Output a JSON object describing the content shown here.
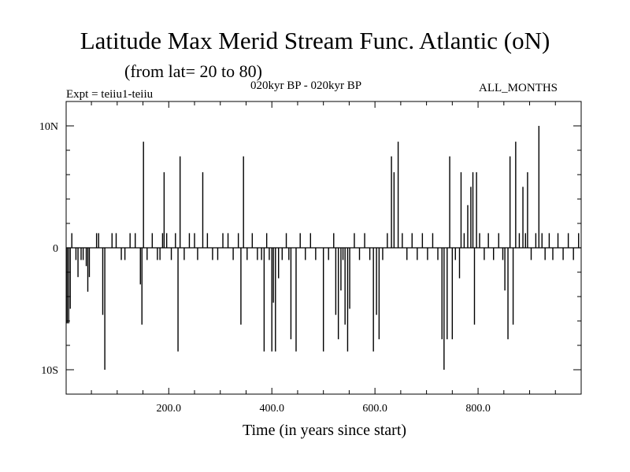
{
  "chart_data": {
    "type": "line",
    "title": "Latitude Max Merid Stream Func. Atlantic (oN)",
    "subtitle": "(from lat= 20 to 80)",
    "experiment_label": "Expt = teiiu1-teiiu",
    "period_label": "020kyr BP - 020kyr BP",
    "months_label": "ALL_MONTHS",
    "xlabel": "Time (in years since start)",
    "ylabel": "",
    "xlim": [
      1,
      1000
    ],
    "ylim": [
      -12,
      12
    ],
    "x_ticks": [
      {
        "value": 200,
        "label": "200.0"
      },
      {
        "value": 400,
        "label": "400.0"
      },
      {
        "value": 600,
        "label": "600.0"
      },
      {
        "value": 800,
        "label": "800.0"
      }
    ],
    "y_ticks": [
      {
        "value": 10,
        "label": "10N"
      },
      {
        "value": 0,
        "label": "0"
      },
      {
        "value": -10,
        "label": "10S"
      }
    ],
    "y_minor_ticks": [
      -8,
      -6,
      -4,
      -2,
      2,
      4,
      6,
      8
    ],
    "x_minor_step": 50,
    "grid": false,
    "line_color": "#000000",
    "baseline": 0,
    "spikes": [
      {
        "x": 3,
        "y": -6.2
      },
      {
        "x": 6,
        "y": -6.2
      },
      {
        "x": 9,
        "y": -5.0
      },
      {
        "x": 12,
        "y": 1.2
      },
      {
        "x": 20,
        "y": -1.0
      },
      {
        "x": 24,
        "y": -2.4
      },
      {
        "x": 30,
        "y": -1.0
      },
      {
        "x": 34,
        "y": -1.0
      },
      {
        "x": 40,
        "y": -1.5
      },
      {
        "x": 43,
        "y": -3.6
      },
      {
        "x": 46,
        "y": -2.4
      },
      {
        "x": 60,
        "y": 1.2
      },
      {
        "x": 64,
        "y": 1.2
      },
      {
        "x": 72,
        "y": -5.5
      },
      {
        "x": 76,
        "y": -10.0
      },
      {
        "x": 90,
        "y": 1.2
      },
      {
        "x": 98,
        "y": 1.2
      },
      {
        "x": 108,
        "y": -1.0
      },
      {
        "x": 115,
        "y": -1.0
      },
      {
        "x": 125,
        "y": 1.2
      },
      {
        "x": 135,
        "y": 1.2
      },
      {
        "x": 145,
        "y": -3.0
      },
      {
        "x": 148,
        "y": -6.3
      },
      {
        "x": 151,
        "y": 8.7
      },
      {
        "x": 158,
        "y": -1.0
      },
      {
        "x": 168,
        "y": 1.2
      },
      {
        "x": 178,
        "y": -1.0
      },
      {
        "x": 183,
        "y": -1.0
      },
      {
        "x": 188,
        "y": 1.2
      },
      {
        "x": 191,
        "y": 6.2
      },
      {
        "x": 196,
        "y": 1.2
      },
      {
        "x": 205,
        "y": -1.0
      },
      {
        "x": 213,
        "y": 1.2
      },
      {
        "x": 218,
        "y": -8.5
      },
      {
        "x": 222,
        "y": 7.5
      },
      {
        "x": 230,
        "y": -1.0
      },
      {
        "x": 240,
        "y": 1.2
      },
      {
        "x": 250,
        "y": 1.2
      },
      {
        "x": 256,
        "y": -1.0
      },
      {
        "x": 266,
        "y": 6.2
      },
      {
        "x": 275,
        "y": 1.2
      },
      {
        "x": 285,
        "y": -1.0
      },
      {
        "x": 295,
        "y": -1.0
      },
      {
        "x": 305,
        "y": 1.2
      },
      {
        "x": 315,
        "y": 1.2
      },
      {
        "x": 325,
        "y": -1.0
      },
      {
        "x": 335,
        "y": 1.2
      },
      {
        "x": 340,
        "y": -6.3
      },
      {
        "x": 345,
        "y": 7.5
      },
      {
        "x": 352,
        "y": -1.0
      },
      {
        "x": 362,
        "y": 1.2
      },
      {
        "x": 372,
        "y": -1.0
      },
      {
        "x": 380,
        "y": -1.0
      },
      {
        "x": 385,
        "y": -8.5
      },
      {
        "x": 390,
        "y": 1.2
      },
      {
        "x": 395,
        "y": -1.0
      },
      {
        "x": 400,
        "y": -8.5
      },
      {
        "x": 403,
        "y": -4.5
      },
      {
        "x": 407,
        "y": -8.5
      },
      {
        "x": 413,
        "y": -2.5
      },
      {
        "x": 420,
        "y": -1.0
      },
      {
        "x": 428,
        "y": 1.2
      },
      {
        "x": 433,
        "y": -1.0
      },
      {
        "x": 437,
        "y": -7.5
      },
      {
        "x": 447,
        "y": -8.5
      },
      {
        "x": 455,
        "y": 1.2
      },
      {
        "x": 465,
        "y": -1.0
      },
      {
        "x": 475,
        "y": 1.2
      },
      {
        "x": 485,
        "y": -1.0
      },
      {
        "x": 500,
        "y": -8.5
      },
      {
        "x": 510,
        "y": -1.0
      },
      {
        "x": 520,
        "y": 1.2
      },
      {
        "x": 524,
        "y": -5.5
      },
      {
        "x": 529,
        "y": -7.5
      },
      {
        "x": 534,
        "y": -3.5
      },
      {
        "x": 538,
        "y": -1.0
      },
      {
        "x": 542,
        "y": -6.3
      },
      {
        "x": 547,
        "y": -8.5
      },
      {
        "x": 551,
        "y": -5.0
      },
      {
        "x": 560,
        "y": 1.2
      },
      {
        "x": 570,
        "y": -1.0
      },
      {
        "x": 580,
        "y": 1.2
      },
      {
        "x": 590,
        "y": -1.0
      },
      {
        "x": 597,
        "y": -8.5
      },
      {
        "x": 603,
        "y": -5.5
      },
      {
        "x": 608,
        "y": -7.5
      },
      {
        "x": 615,
        "y": -1.0
      },
      {
        "x": 624,
        "y": 1.2
      },
      {
        "x": 632,
        "y": 7.5
      },
      {
        "x": 637,
        "y": 6.2
      },
      {
        "x": 645,
        "y": 8.7
      },
      {
        "x": 653,
        "y": 1.2
      },
      {
        "x": 662,
        "y": -1.0
      },
      {
        "x": 672,
        "y": 1.2
      },
      {
        "x": 682,
        "y": -1.0
      },
      {
        "x": 692,
        "y": 1.2
      },
      {
        "x": 702,
        "y": -1.0
      },
      {
        "x": 712,
        "y": 1.2
      },
      {
        "x": 722,
        "y": -1.0
      },
      {
        "x": 730,
        "y": -7.5
      },
      {
        "x": 734,
        "y": -10.0
      },
      {
        "x": 740,
        "y": -7.5
      },
      {
        "x": 745,
        "y": 7.5
      },
      {
        "x": 750,
        "y": -7.5
      },
      {
        "x": 756,
        "y": -1.0
      },
      {
        "x": 764,
        "y": -2.5
      },
      {
        "x": 767,
        "y": 6.2
      },
      {
        "x": 773,
        "y": 1.2
      },
      {
        "x": 780,
        "y": 3.5
      },
      {
        "x": 786,
        "y": 5.0
      },
      {
        "x": 790,
        "y": 6.2
      },
      {
        "x": 793,
        "y": -6.3
      },
      {
        "x": 797,
        "y": 6.2
      },
      {
        "x": 803,
        "y": 1.2
      },
      {
        "x": 812,
        "y": -1.0
      },
      {
        "x": 820,
        "y": 1.2
      },
      {
        "x": 830,
        "y": -1.0
      },
      {
        "x": 840,
        "y": 1.2
      },
      {
        "x": 848,
        "y": -1.0
      },
      {
        "x": 852,
        "y": -3.5
      },
      {
        "x": 858,
        "y": -7.5
      },
      {
        "x": 862,
        "y": 7.5
      },
      {
        "x": 868,
        "y": -6.3
      },
      {
        "x": 873,
        "y": 8.7
      },
      {
        "x": 880,
        "y": 1.2
      },
      {
        "x": 887,
        "y": 5.0
      },
      {
        "x": 892,
        "y": 1.2
      },
      {
        "x": 896,
        "y": 6.2
      },
      {
        "x": 903,
        "y": -1.0
      },
      {
        "x": 912,
        "y": 1.2
      },
      {
        "x": 918,
        "y": 10.0
      },
      {
        "x": 924,
        "y": 1.2
      },
      {
        "x": 930,
        "y": -1.0
      },
      {
        "x": 938,
        "y": 1.2
      },
      {
        "x": 945,
        "y": -1.0
      },
      {
        "x": 955,
        "y": 1.2
      },
      {
        "x": 965,
        "y": -1.0
      },
      {
        "x": 975,
        "y": 1.2
      },
      {
        "x": 985,
        "y": -1.0
      },
      {
        "x": 995,
        "y": 1.2
      }
    ]
  }
}
